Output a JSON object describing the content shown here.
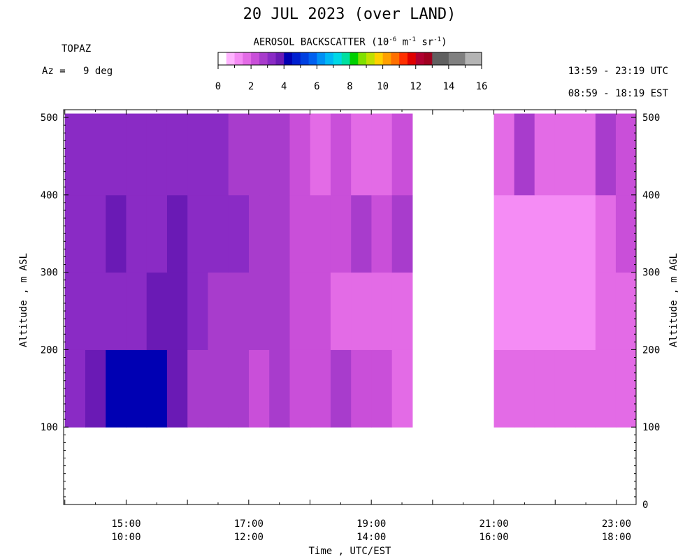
{
  "title": "20 JUL 2023 (over LAND)",
  "instrument": "TOPAZ",
  "azimuth": "Az =   9 deg",
  "time_range_utc": "13:59 - 23:19 UTC",
  "time_range_est": "08:59 - 18:19 EST",
  "colorbar": {
    "label_prefix": "AEROSOL BACKSCATTER (10",
    "label_exp1": "-6",
    "label_mid1": " m",
    "label_exp2": "-1",
    "label_mid2": " sr",
    "label_exp3": "-1",
    "label_suffix": ")",
    "ticks": [
      "0",
      "2",
      "4",
      "6",
      "8",
      "10",
      "12",
      "14",
      "16"
    ],
    "colors": [
      "#ffffff",
      "#ffb4ff",
      "#f58cf5",
      "#e36be6",
      "#c94fd9",
      "#a83ccc",
      "#8a2bc5",
      "#6a1ab5",
      "#0000b3",
      "#0020d0",
      "#0040e0",
      "#0060f0",
      "#0090f5",
      "#00b8f5",
      "#00d8e6",
      "#00e0a0",
      "#00d000",
      "#80e000",
      "#c0e000",
      "#ffd000",
      "#ffa000",
      "#ff7000",
      "#ff3000",
      "#e00000",
      "#b00030",
      "#a00020",
      "#606060",
      "#606060",
      "#808080",
      "#808080",
      "#b4b4b4",
      "#b4b4b4"
    ]
  },
  "chart_data": {
    "type": "heatmap",
    "xlabel": "Time , UTC/EST",
    "ylabel_left": "Altitude , m ASL",
    "ylabel_right": "Altitude , m AGL",
    "xlim_utc_hours": [
      13.98,
      23.32
    ],
    "ylim_m": [
      0,
      510
    ],
    "x_ticks": [
      {
        "utc": "15:00",
        "est": "10:00"
      },
      {
        "utc": "17:00",
        "est": "12:00"
      },
      {
        "utc": "19:00",
        "est": "14:00"
      },
      {
        "utc": "21:00",
        "est": "16:00"
      },
      {
        "utc": "23:00",
        "est": "18:00"
      }
    ],
    "x_tick_values_utc_hours": [
      15,
      17,
      19,
      21,
      23
    ],
    "y_ticks_left": [
      "500",
      "400",
      "300",
      "200",
      "100"
    ],
    "y_tick_values_left": [
      500,
      400,
      300,
      200,
      100
    ],
    "y_ticks_right": [
      "500",
      "400",
      "300",
      "200",
      "100",
      "0"
    ],
    "y_tick_values_right": [
      500,
      400,
      300,
      200,
      100,
      0
    ],
    "altitude_bottom_m": 100,
    "altitude_top_m": 505,
    "data_gap_utc_hours": [
      19.67,
      21.0
    ],
    "segments": [
      {
        "utc_start_hours": 14.0,
        "utc_end_hours": 19.67,
        "altitude_bands_m": [
          {
            "bottom": 100,
            "top": 200,
            "values": [
              3.4,
              3.5,
              4.0,
              4.3,
              4.2,
              3.6,
              2.9,
              2.6,
              2.7,
              2.4,
              2.5,
              2.4,
              2.3,
              2.5,
              2.2,
              2.0,
              1.8
            ]
          },
          {
            "bottom": 200,
            "top": 300,
            "values": [
              3.2,
              3.1,
              3.4,
              3.1,
              3.5,
              3.8,
              3.2,
              2.9,
              2.7,
              2.6,
              2.6,
              2.3,
              2.0,
              1.9,
              1.7,
              1.7,
              1.6
            ]
          },
          {
            "bottom": 300,
            "top": 400,
            "values": [
              3.1,
              3.3,
              3.6,
              3.4,
              3.4,
              3.7,
              3.4,
              3.1,
              3.1,
              2.8,
              2.7,
              2.4,
              2.2,
              2.0,
              2.6,
              2.3,
              2.6
            ]
          },
          {
            "bottom": 400,
            "top": 505,
            "values": [
              3.1,
              3.0,
              3.1,
              3.0,
              3.3,
              3.4,
              3.2,
              3.0,
              2.8,
              2.7,
              2.8,
              2.1,
              1.8,
              2.2,
              1.8,
              1.8,
              2.3
            ]
          }
        ]
      },
      {
        "utc_start_hours": 21.0,
        "utc_end_hours": 23.32,
        "altitude_bands_m": [
          {
            "bottom": 100,
            "top": 200,
            "values": [
              1.5,
              1.5,
              1.6,
              1.6,
              1.7,
              1.8,
              1.6
            ]
          },
          {
            "bottom": 200,
            "top": 300,
            "values": [
              1.2,
              1.0,
              1.3,
              1.4,
              1.3,
              1.5,
              1.8
            ]
          },
          {
            "bottom": 300,
            "top": 400,
            "values": [
              1.0,
              1.0,
              1.2,
              1.3,
              1.3,
              1.5,
              2.2
            ]
          },
          {
            "bottom": 400,
            "top": 505,
            "values": [
              1.7,
              2.6,
              1.7,
              1.9,
              1.7,
              2.5,
              2.4
            ]
          }
        ]
      }
    ]
  }
}
